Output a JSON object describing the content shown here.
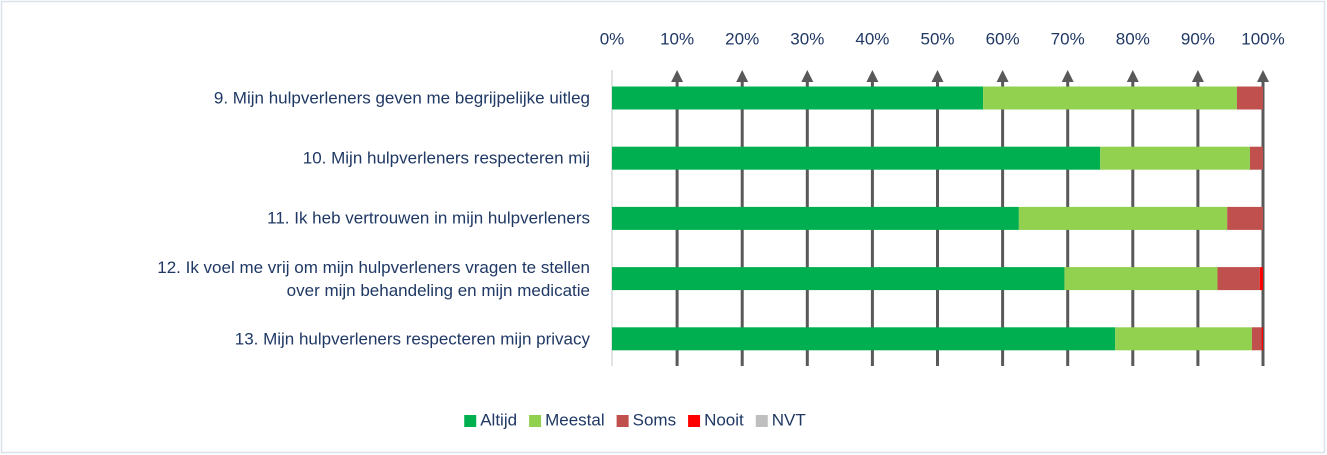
{
  "chart_data": {
    "type": "stacked_bar_horizontal",
    "categories": [
      "9. Mijn hulpverleners geven me begrijpelijke uitleg",
      "10. Mijn hulpverleners respecteren mij",
      "11. Ik heb vertrouwen in mijn hulpverleners",
      "12. Ik voel me vrij om mijn hulpverleners vragen te stellen\nover mijn behandeling en mijn medicatie",
      "13. Mijn hulpverleners respecteren mijn privacy"
    ],
    "series": [
      {
        "name": "Altijd",
        "color": "#00b050",
        "values": [
          57,
          75,
          62.5,
          69.5,
          77.3
        ]
      },
      {
        "name": "Meestal",
        "color": "#92d050",
        "values": [
          39,
          23,
          32,
          23.5,
          21
        ]
      },
      {
        "name": "Soms",
        "color": "#c0504d",
        "values": [
          4,
          2,
          5.5,
          6.5,
          1.5
        ]
      },
      {
        "name": "Nooit",
        "color": "#ff0000",
        "values": [
          0,
          0,
          0,
          0.5,
          0.2
        ]
      },
      {
        "name": "NVT",
        "color": "#bfbfbf",
        "values": [
          0,
          0,
          0,
          0,
          0
        ]
      }
    ],
    "xlim": [
      0,
      100
    ],
    "xticks": [
      {
        "value": 0,
        "label": "0%"
      },
      {
        "value": 10,
        "label": "10%"
      },
      {
        "value": 20,
        "label": "20%"
      },
      {
        "value": 30,
        "label": "30%"
      },
      {
        "value": 40,
        "label": "40%"
      },
      {
        "value": 50,
        "label": "50%"
      },
      {
        "value": 60,
        "label": "60%"
      },
      {
        "value": 70,
        "label": "70%"
      },
      {
        "value": 80,
        "label": "80%"
      },
      {
        "value": 90,
        "label": "90%"
      },
      {
        "value": 100,
        "label": "100%"
      }
    ],
    "grid": true,
    "legend": "bottom"
  }
}
